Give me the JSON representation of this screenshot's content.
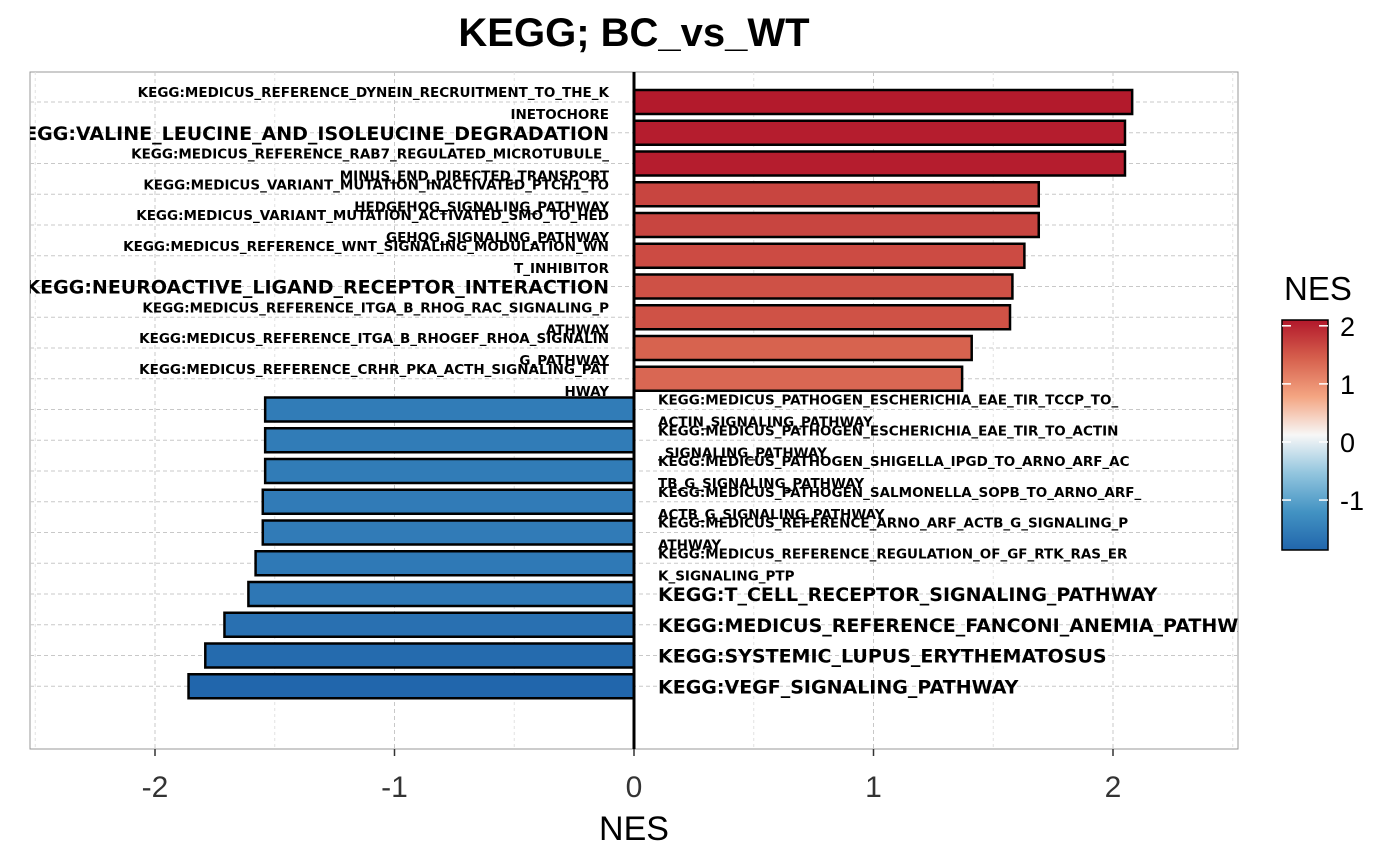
{
  "chart_data": {
    "type": "bar",
    "orientation": "horizontal",
    "title": "KEGG; BC_vs_WT",
    "xlabel": "NES",
    "ylabel": "",
    "xlim": [
      -2.5,
      2.5
    ],
    "x_ticks": [
      -2,
      -1,
      0,
      1,
      2
    ],
    "grid": true,
    "legend": {
      "title": "NES",
      "placement": "right",
      "ticks": [
        2,
        1,
        0,
        -1
      ],
      "range": [
        -1.86,
        2.1
      ],
      "colors": [
        "#2166ac",
        "#4393c3",
        "#92c5de",
        "#f7f7f7",
        "#f4a582",
        "#d6604d",
        "#b2182b"
      ]
    },
    "bars": [
      {
        "term": "KEGG:MEDICUS_REFERENCE_DYNEIN_RECRUITMENT_TO_THE_KINETOCHORE",
        "lines": [
          "KEGG:MEDICUS_REFERENCE_DYNEIN_RECRUITMENT_TO_THE_K",
          "INETOCHORE"
        ],
        "nes": 2.08
      },
      {
        "term": "KEGG:VALINE_LEUCINE_AND_ISOLEUCINE_DEGRADATION",
        "lines": [
          "KEGG:VALINE_LEUCINE_AND_ISOLEUCINE_DEGRADATION"
        ],
        "nes": 2.05
      },
      {
        "term": "KEGG:MEDICUS_REFERENCE_RAB7_REGULATED_MICROTUBULE_MINUS_END_DIRECTED_TRANSPORT",
        "lines": [
          "KEGG:MEDICUS_REFERENCE_RAB7_REGULATED_MICROTUBULE_",
          "MINUS_END_DIRECTED_TRANSPORT"
        ],
        "nes": 2.05
      },
      {
        "term": "KEGG:MEDICUS_VARIANT_MUTATION_INACTIVATED_PTCH1_TO_HEDGEHOG_SIGNALING_PATHWAY",
        "lines": [
          "KEGG:MEDICUS_VARIANT_MUTATION_INACTIVATED_PTCH1_TO",
          "HEDGEHOG_SIGNALING_PATHWAY"
        ],
        "nes": 1.69
      },
      {
        "term": "KEGG:MEDICUS_VARIANT_MUTATION_ACTIVATED_SMO_TO_HEDGEHOG_SIGNALING_PATHWAY",
        "lines": [
          "KEGG:MEDICUS_VARIANT_MUTATION_ACTIVATED_SMO_TO_HED",
          "GEHOG_SIGNALING_PATHWAY"
        ],
        "nes": 1.69
      },
      {
        "term": "KEGG:MEDICUS_REFERENCE_WNT_SIGNALING_MODULATION_WNT_INHIBITOR",
        "lines": [
          "KEGG:MEDICUS_REFERENCE_WNT_SIGNALING_MODULATION_WN",
          "T_INHIBITOR"
        ],
        "nes": 1.63
      },
      {
        "term": "KEGG:NEUROACTIVE_LIGAND_RECEPTOR_INTERACTION",
        "lines": [
          "KEGG:NEUROACTIVE_LIGAND_RECEPTOR_INTERACTION"
        ],
        "nes": 1.58
      },
      {
        "term": "KEGG:MEDICUS_REFERENCE_ITGA_B_RHOG_RAC_SIGNALING_PATHWAY",
        "lines": [
          "KEGG:MEDICUS_REFERENCE_ITGA_B_RHOG_RAC_SIGNALING_P",
          "ATHWAY"
        ],
        "nes": 1.57
      },
      {
        "term": "KEGG:MEDICUS_REFERENCE_ITGA_B_RHOGEF_RHOA_SIGNALING_PATHWAY",
        "lines": [
          "KEGG:MEDICUS_REFERENCE_ITGA_B_RHOGEF_RHOA_SIGNALIN",
          "G_PATHWAY"
        ],
        "nes": 1.41
      },
      {
        "term": "KEGG:MEDICUS_REFERENCE_CRHR_PKA_ACTH_SIGNALING_PATHWAY",
        "lines": [
          "KEGG:MEDICUS_REFERENCE_CRHR_PKA_ACTH_SIGNALING_PAT",
          "HWAY"
        ],
        "nes": 1.37
      },
      {
        "term": "KEGG:MEDICUS_PATHOGEN_ESCHERICHIA_EAE_TIR_TCCP_TO_ACTIN_SIGNALING_PATHWAY",
        "lines": [
          "KEGG:MEDICUS_PATHOGEN_ESCHERICHIA_EAE_TIR_TCCP_TO_",
          "ACTIN_SIGNALING_PATHWAY"
        ],
        "nes": -1.54
      },
      {
        "term": "KEGG:MEDICUS_PATHOGEN_ESCHERICHIA_EAE_TIR_TO_ACTIN_SIGNALING_PATHWAY",
        "lines": [
          "KEGG:MEDICUS_PATHOGEN_ESCHERICHIA_EAE_TIR_TO_ACTIN",
          "_SIGNALING_PATHWAY"
        ],
        "nes": -1.54
      },
      {
        "term": "KEGG:MEDICUS_PATHOGEN_SHIGELLA_IPGD_TO_ARNO_ARF_ACTB_G_SIGNALING_PATHWAY",
        "lines": [
          "KEGG:MEDICUS_PATHOGEN_SHIGELLA_IPGD_TO_ARNO_ARF_AC",
          "TB_G_SIGNALING_PATHWAY"
        ],
        "nes": -1.54
      },
      {
        "term": "KEGG:MEDICUS_PATHOGEN_SALMONELLA_SOPB_TO_ARNO_ARF_ACTB_G_SIGNALING_PATHWAY",
        "lines": [
          "KEGG:MEDICUS_PATHOGEN_SALMONELLA_SOPB_TO_ARNO_ARF_",
          "ACTB_G_SIGNALING_PATHWAY"
        ],
        "nes": -1.55
      },
      {
        "term": "KEGG:MEDICUS_REFERENCE_ARNO_ARF_ACTB_G_SIGNALING_PATHWAY",
        "lines": [
          "KEGG:MEDICUS_REFERENCE_ARNO_ARF_ACTB_G_SIGNALING_P",
          "ATHWAY"
        ],
        "nes": -1.55
      },
      {
        "term": "KEGG:MEDICUS_REFERENCE_REGULATION_OF_GF_RTK_RAS_ERK_SIGNALING_PTP",
        "lines": [
          "KEGG:MEDICUS_REFERENCE_REGULATION_OF_GF_RTK_RAS_ER",
          "K_SIGNALING_PTP"
        ],
        "nes": -1.58
      },
      {
        "term": "KEGG:T_CELL_RECEPTOR_SIGNALING_PATHWAY",
        "lines": [
          "KEGG:T_CELL_RECEPTOR_SIGNALING_PATHWAY"
        ],
        "nes": -1.61
      },
      {
        "term": "KEGG:MEDICUS_REFERENCE_FANCONI_ANEMIA_PATHWAY",
        "lines": [
          "KEGG:MEDICUS_REFERENCE_FANCONI_ANEMIA_PATHWAY"
        ],
        "nes": -1.71
      },
      {
        "term": "KEGG:SYSTEMIC_LUPUS_ERYTHEMATOSUS",
        "lines": [
          "KEGG:SYSTEMIC_LUPUS_ERYTHEMATOSUS"
        ],
        "nes": -1.79
      },
      {
        "term": "KEGG:VEGF_SIGNALING_PATHWAY",
        "lines": [
          "KEGG:VEGF_SIGNALING_PATHWAY"
        ],
        "nes": -1.86
      }
    ]
  }
}
